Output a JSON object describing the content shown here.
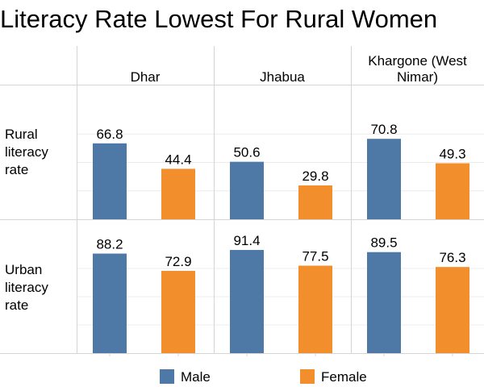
{
  "title": "Literacy Rate Lowest For Rural Women",
  "colors": {
    "male": "#4e79a7",
    "female": "#f28e2b"
  },
  "chart_data": {
    "type": "bar",
    "title": "Literacy Rate Lowest For Rural Women",
    "columns": [
      {
        "label_lines": [
          "Dhar"
        ]
      },
      {
        "label_lines": [
          "Jhabua"
        ]
      },
      {
        "label_lines": [
          "Khargone (West",
          "Nimar)"
        ]
      }
    ],
    "rows": [
      {
        "label_lines": [
          "Rural",
          "literacy",
          "rate"
        ]
      },
      {
        "label_lines": [
          "Urban",
          "literacy",
          "rate"
        ]
      }
    ],
    "ylim": [
      0,
      100
    ],
    "series": [
      {
        "name": "Male",
        "values": [
          [
            66.8,
            50.6,
            70.8
          ],
          [
            88.2,
            91.4,
            89.5
          ]
        ]
      },
      {
        "name": "Female",
        "values": [
          [
            44.4,
            29.8,
            49.3
          ],
          [
            72.9,
            77.5,
            76.3
          ]
        ]
      }
    ],
    "legend": {
      "position": "bottom",
      "items": [
        "Male",
        "Female"
      ]
    }
  }
}
